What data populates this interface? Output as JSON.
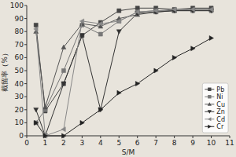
{
  "chart_data": {
    "type": "line",
    "xlabel": "S/M",
    "ylabel": "截留率（%）",
    "x": [
      0.5,
      1,
      2,
      3,
      4,
      5,
      6,
      7,
      8,
      9,
      10
    ],
    "series": [
      {
        "name": "Pb",
        "color": "#444444",
        "marker": "square",
        "values": [
          85,
          19,
          40,
          77,
          87,
          96,
          98,
          98,
          97,
          98,
          98
        ]
      },
      {
        "name": "Ni",
        "color": "#777777",
        "marker": "square",
        "values": [
          10,
          20,
          50,
          85,
          78,
          88,
          95,
          96,
          96,
          96,
          96
        ]
      },
      {
        "name": "Cu",
        "color": "#555555",
        "marker": "triangle-up",
        "values": [
          80,
          22,
          68,
          86,
          84,
          90,
          93,
          95,
          96,
          97,
          97
        ]
      },
      {
        "name": "Zn",
        "color": "#333333",
        "marker": "triangle-down",
        "values": [
          20,
          0,
          40,
          77,
          20,
          80,
          94,
          95,
          96,
          96,
          96
        ]
      },
      {
        "name": "Cd",
        "color": "#888888",
        "marker": "triangle-left",
        "values": [
          82,
          0,
          5,
          88,
          86,
          88,
          95,
          96,
          97,
          97,
          97
        ]
      },
      {
        "name": "Cr",
        "color": "#222222",
        "marker": "triangle-right",
        "values": [
          10,
          0,
          0,
          10,
          20,
          33,
          40,
          50,
          60,
          67,
          75
        ]
      }
    ],
    "xlim": [
      0,
      11
    ],
    "ylim": [
      0,
      100
    ],
    "xticks": [
      0,
      1,
      2,
      3,
      4,
      5,
      6,
      7,
      8,
      9,
      10,
      11
    ],
    "yticks": [
      0,
      10,
      20,
      30,
      40,
      50,
      60,
      70,
      80,
      90,
      100
    ],
    "grid": false,
    "legend": "lower right"
  }
}
